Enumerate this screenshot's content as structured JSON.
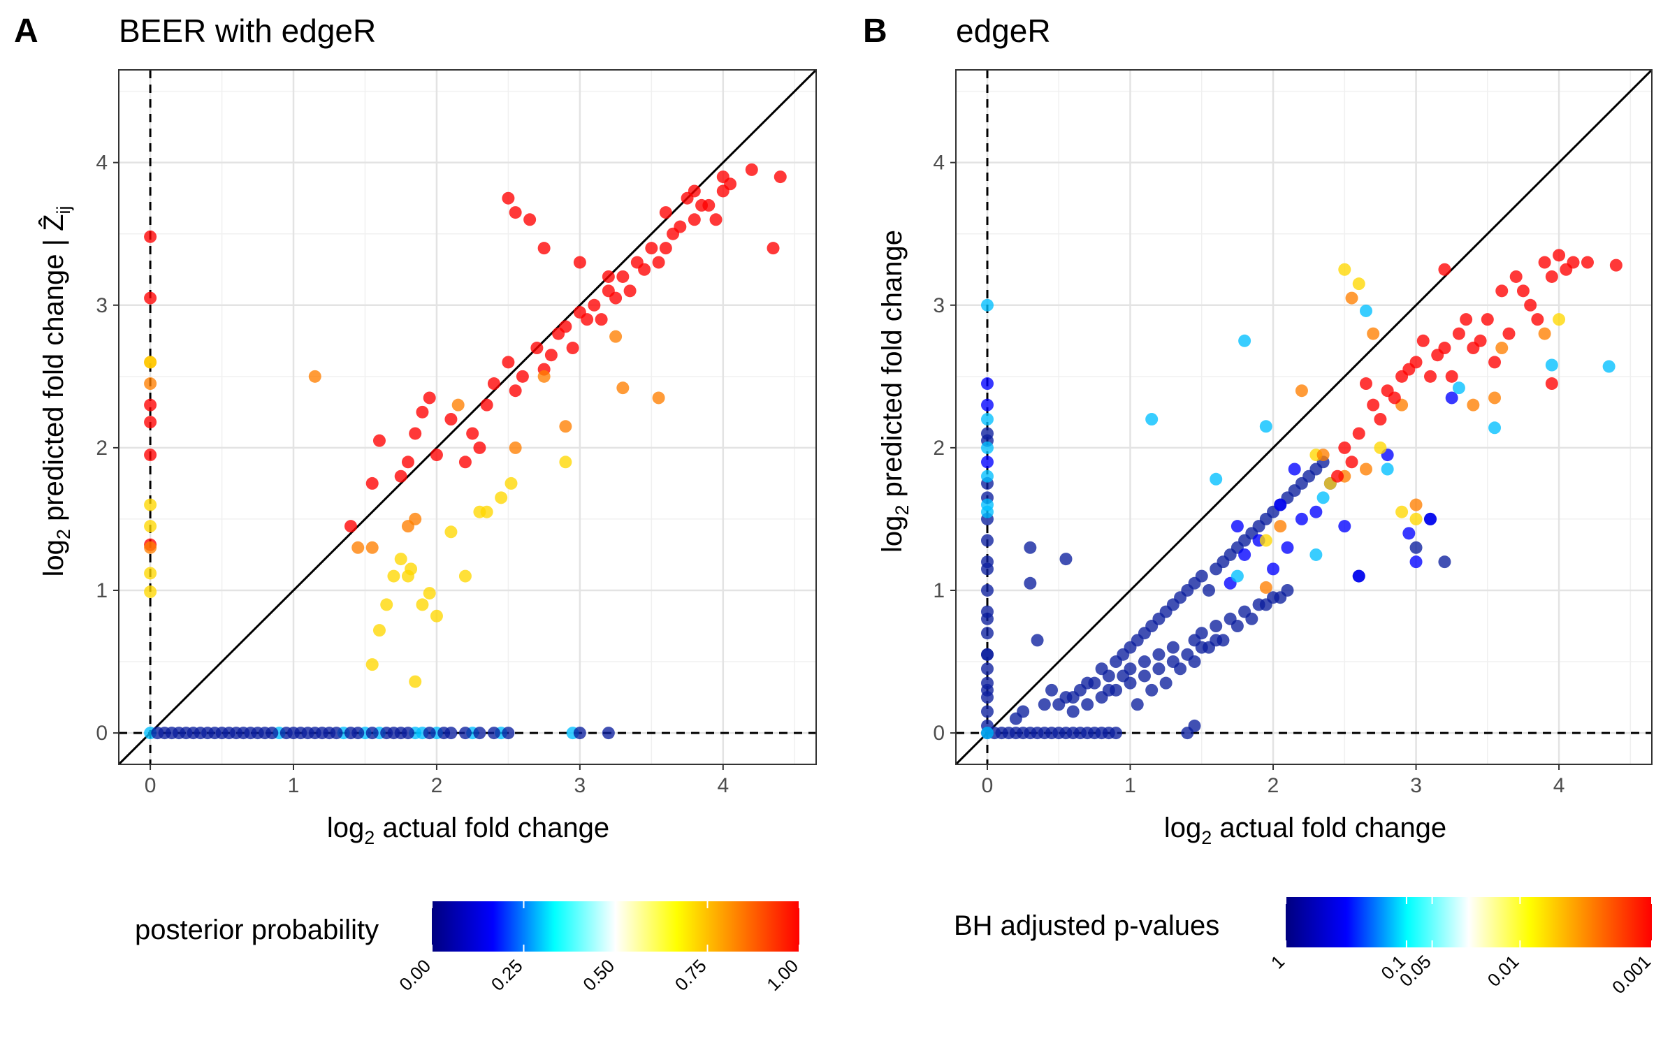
{
  "chart_data": [
    {
      "type": "scatter",
      "panel_letter": "A",
      "title": "BEER with edgeR",
      "xlabel": "log2 actual fold change",
      "ylabel": "log2 predicted fold change | Ẑij",
      "xlim": [
        -0.22,
        4.65
      ],
      "ylim": [
        -0.22,
        4.65
      ],
      "xticks": [
        0,
        1,
        2,
        3,
        4
      ],
      "yticks": [
        0,
        1,
        2,
        3,
        4
      ],
      "grid": true,
      "reference_lines": [
        "y = x (solid)",
        "x = 0 (dashed)",
        "y = 0 (dashed)"
      ],
      "colorbar": {
        "title": "posterior probability",
        "colors": [
          "#00007f",
          "#0000ff",
          "#00ffff",
          "#ffffff",
          "#ffff00",
          "#ff8000",
          "#ff0000"
        ],
        "tick_labels": [
          "0.00",
          "0.25",
          "0.50",
          "0.75",
          "1.00"
        ]
      },
      "point_groups": [
        {
          "color": "#ff0000",
          "x": [
            2.85,
            3.0,
            3.2,
            3.4,
            3.6,
            3.8,
            3.9,
            4.0,
            3.7,
            3.5,
            3.3,
            3.1,
            2.9,
            2.7,
            2.5,
            2.4,
            2.6,
            2.8,
            3.05,
            3.25,
            3.45,
            3.65,
            3.85,
            4.05,
            4.2,
            4.35,
            4.4,
            3.95,
            3.75,
            3.55,
            3.35,
            3.15,
            2.95,
            2.75,
            2.55,
            2.35,
            2.25,
            2.1,
            2.0,
            1.95,
            1.9,
            1.85,
            1.8,
            1.75,
            1.6,
            1.55,
            1.4,
            2.5,
            2.55,
            2.65,
            2.3,
            2.75,
            2.2,
            3.0,
            3.2,
            3.8,
            4.0,
            3.6,
            0.0,
            0.0,
            0.0,
            0.0,
            0.0,
            0.0
          ],
          "y": [
            2.8,
            2.95,
            3.1,
            3.3,
            3.4,
            3.6,
            3.7,
            3.8,
            3.55,
            3.4,
            3.2,
            3.0,
            2.85,
            2.7,
            2.6,
            2.45,
            2.5,
            2.65,
            2.9,
            3.05,
            3.25,
            3.5,
            3.7,
            3.85,
            3.95,
            3.4,
            3.9,
            3.6,
            3.75,
            3.3,
            3.1,
            2.9,
            2.7,
            2.55,
            2.4,
            2.3,
            2.1,
            2.2,
            1.95,
            2.35,
            2.25,
            2.1,
            1.9,
            1.8,
            2.05,
            1.75,
            1.45,
            3.75,
            3.65,
            3.6,
            2.0,
            3.4,
            1.9,
            3.3,
            3.2,
            3.8,
            3.9,
            3.65,
            3.48,
            3.05,
            2.3,
            2.18,
            1.95,
            1.32
          ]
        },
        {
          "color": "#ff7f00",
          "x": [
            1.15,
            1.45,
            1.55,
            1.8,
            1.85,
            2.15,
            2.55,
            2.75,
            3.3,
            3.55,
            3.25,
            2.9,
            0.0,
            0.0,
            0.0
          ],
          "y": [
            2.5,
            1.3,
            1.3,
            1.45,
            1.5,
            2.3,
            2.0,
            2.5,
            2.42,
            2.35,
            2.78,
            2.15,
            2.6,
            2.45,
            1.3
          ]
        },
        {
          "color": "#ffd700",
          "x": [
            1.7,
            1.75,
            1.8,
            1.82,
            1.9,
            1.95,
            2.0,
            2.1,
            2.2,
            2.3,
            2.35,
            2.45,
            2.52,
            2.9,
            1.6,
            1.65,
            1.55,
            1.85,
            0.0,
            0.0,
            0.0,
            0.0,
            0.0
          ],
          "y": [
            1.1,
            1.22,
            1.1,
            1.15,
            0.9,
            0.98,
            0.82,
            1.41,
            1.1,
            1.55,
            1.55,
            1.65,
            1.75,
            1.9,
            0.72,
            0.9,
            0.48,
            0.36,
            2.6,
            1.6,
            1.45,
            1.12,
            0.99
          ]
        },
        {
          "color": "#00bfff",
          "x": [
            0.0,
            0.9,
            1.35,
            1.5,
            1.6,
            1.85,
            1.9,
            2.0,
            2.25,
            2.45,
            2.95
          ],
          "y": [
            0.0,
            0.0,
            0.0,
            0.0,
            0.0,
            0.0,
            0.0,
            0.0,
            0.0,
            0.0,
            0.0
          ]
        },
        {
          "color": "#0b1f9e",
          "x": [
            0.05,
            0.1,
            0.15,
            0.2,
            0.25,
            0.3,
            0.35,
            0.4,
            0.45,
            0.5,
            0.55,
            0.6,
            0.65,
            0.7,
            0.75,
            0.8,
            0.85,
            0.95,
            1.0,
            1.05,
            1.1,
            1.15,
            1.2,
            1.25,
            1.3,
            1.4,
            1.45,
            1.55,
            1.65,
            1.7,
            1.75,
            1.8,
            1.95,
            2.05,
            2.1,
            2.2,
            2.3,
            2.4,
            2.5,
            3.0,
            3.2
          ],
          "y": [
            0,
            0,
            0,
            0,
            0,
            0,
            0,
            0,
            0,
            0,
            0,
            0,
            0,
            0,
            0,
            0,
            0,
            0,
            0,
            0,
            0,
            0,
            0,
            0,
            0,
            0,
            0,
            0,
            0,
            0,
            0,
            0,
            0,
            0,
            0,
            0,
            0,
            0,
            0,
            0,
            0
          ]
        }
      ]
    },
    {
      "type": "scatter",
      "panel_letter": "B",
      "title": "edgeR",
      "xlabel": "log2 actual fold change",
      "ylabel": "log2 predicted fold change",
      "xlim": [
        -0.22,
        4.65
      ],
      "ylim": [
        -0.22,
        4.65
      ],
      "xticks": [
        0,
        1,
        2,
        3,
        4
      ],
      "yticks": [
        0,
        1,
        2,
        3,
        4
      ],
      "grid": true,
      "reference_lines": [
        "y = x (solid)",
        "x = 0 (dashed)",
        "y = 0 (dashed)"
      ],
      "colorbar": {
        "title": "BH adjusted p-values",
        "colors": [
          "#00007f",
          "#0000ff",
          "#00ffff",
          "#ffffff",
          "#ffff00",
          "#ff8000",
          "#ff0000"
        ],
        "tick_labels": [
          "1",
          "0.1",
          "0.05",
          "0.01",
          "0.001"
        ]
      },
      "point_groups": [
        {
          "color": "#ff0000",
          "x": [
            2.5,
            2.6,
            2.7,
            2.8,
            2.9,
            3.0,
            3.1,
            3.2,
            3.3,
            3.4,
            3.5,
            3.6,
            3.7,
            3.8,
            3.9,
            4.0,
            4.1,
            4.2,
            4.4,
            3.65,
            3.75,
            3.85,
            3.95,
            4.05,
            3.55,
            3.45,
            3.35,
            3.25,
            3.15,
            3.05,
            2.95,
            2.85,
            2.75,
            2.65,
            2.55,
            2.45,
            3.2,
            3.95
          ],
          "y": [
            2.0,
            2.1,
            2.3,
            2.4,
            2.5,
            2.6,
            2.5,
            2.7,
            2.8,
            2.7,
            2.9,
            3.1,
            3.2,
            3.0,
            3.3,
            3.35,
            3.3,
            3.3,
            3.28,
            2.8,
            3.1,
            2.9,
            3.2,
            3.25,
            2.6,
            2.75,
            2.9,
            2.5,
            2.65,
            2.75,
            2.55,
            2.35,
            2.2,
            2.45,
            1.9,
            1.8,
            3.25,
            2.45
          ]
        },
        {
          "color": "#ff7f00",
          "x": [
            2.2,
            2.35,
            2.5,
            2.55,
            2.7,
            2.9,
            3.0,
            3.4,
            3.55,
            2.05,
            1.95,
            3.9,
            3.6,
            2.65
          ],
          "y": [
            2.4,
            1.95,
            1.8,
            3.05,
            2.8,
            2.3,
            1.6,
            2.3,
            2.35,
            1.45,
            1.02,
            2.8,
            2.7,
            1.85
          ]
        },
        {
          "color": "#ffd700",
          "x": [
            2.5,
            2.6,
            2.3,
            2.75,
            1.95,
            2.4,
            4.0,
            3.0,
            2.9
          ],
          "y": [
            3.25,
            3.15,
            1.95,
            2.0,
            1.35,
            1.75,
            2.9,
            1.5,
            1.55
          ]
        },
        {
          "color": "#00bfff",
          "x": [
            0.0,
            0.0,
            0.0,
            0.0,
            0.0,
            1.15,
            1.6,
            1.8,
            1.95,
            2.3,
            2.35,
            2.65,
            3.3,
            3.55,
            3.95,
            4.35,
            1.75,
            2.8,
            0.0,
            0.0
          ],
          "y": [
            3.0,
            1.8,
            1.6,
            1.55,
            0.0,
            2.2,
            1.78,
            2.75,
            2.15,
            1.25,
            1.65,
            2.96,
            2.42,
            2.14,
            2.58,
            2.57,
            1.1,
            1.85,
            2.0,
            2.2
          ]
        },
        {
          "color": "#0000ff",
          "x": [
            1.8,
            1.9,
            2.0,
            2.1,
            2.2,
            2.3,
            2.4,
            2.5,
            2.6,
            2.8,
            2.95,
            3.0,
            3.1,
            3.25,
            1.7,
            1.75,
            2.05,
            2.15,
            0.0,
            0.0,
            0.0
          ],
          "y": [
            1.25,
            1.35,
            1.15,
            1.3,
            1.5,
            1.55,
            1.75,
            1.45,
            1.1,
            1.95,
            1.4,
            1.2,
            1.5,
            2.35,
            1.05,
            1.45,
            1.6,
            1.85,
            2.45,
            2.3,
            1.9
          ]
        },
        {
          "color": "#0b1f9e",
          "x": [
            0.0,
            0.0,
            0.0,
            0.0,
            0.0,
            0.0,
            0.0,
            0.0,
            0.0,
            0.0,
            0.0,
            0.0,
            0.0,
            0.0,
            0.0,
            0.0,
            0.0,
            0.05,
            0.1,
            0.15,
            0.2,
            0.25,
            0.3,
            0.35,
            0.4,
            0.45,
            0.5,
            0.55,
            0.6,
            0.65,
            0.7,
            0.75,
            0.8,
            0.85,
            0.9,
            0.2,
            0.25,
            0.5,
            0.55,
            0.65,
            0.7,
            0.8,
            0.85,
            0.9,
            0.95,
            1.0,
            1.05,
            1.1,
            1.15,
            1.2,
            1.25,
            1.3,
            1.35,
            1.4,
            1.45,
            1.5,
            1.55,
            1.6,
            1.65,
            1.7,
            1.75,
            1.8,
            1.85,
            1.9,
            1.95,
            2.0,
            2.05,
            2.1,
            2.15,
            2.2,
            2.25,
            2.3,
            2.35,
            0.4,
            0.45,
            0.6,
            0.75,
            0.85,
            0.95,
            1.0,
            1.1,
            1.2,
            1.3,
            1.45,
            1.5,
            1.6,
            1.7,
            1.8,
            1.9,
            2.0,
            2.1,
            1.05,
            1.15,
            1.25,
            1.35,
            1.45,
            1.55,
            1.65,
            1.75,
            1.85,
            1.95,
            2.05,
            0.6,
            0.7,
            0.8,
            0.9,
            1.0,
            1.1,
            1.2,
            1.3,
            1.4,
            1.5,
            1.6,
            0.0,
            0.0,
            0.0,
            0.0,
            1.4,
            1.45,
            0.35,
            0.3,
            0.3,
            0.55,
            2.6,
            3.1,
            3.2,
            3.0
          ],
          "y": [
            0.05,
            0.15,
            0.25,
            0.35,
            0.45,
            0.55,
            0.7,
            0.85,
            1.0,
            1.2,
            1.35,
            1.5,
            1.65,
            1.75,
            2.05,
            2.1,
            0.0,
            0.0,
            0.0,
            0.0,
            0.0,
            0.0,
            0.0,
            0.0,
            0.0,
            0.0,
            0.0,
            0.0,
            0.0,
            0.0,
            0.0,
            0.0,
            0.0,
            0.0,
            0.0,
            0.1,
            0.15,
            0.2,
            0.25,
            0.3,
            0.35,
            0.45,
            0.4,
            0.5,
            0.55,
            0.6,
            0.65,
            0.7,
            0.75,
            0.8,
            0.85,
            0.9,
            0.95,
            1.0,
            1.05,
            1.1,
            1.0,
            1.15,
            1.2,
            1.25,
            1.3,
            1.35,
            1.4,
            1.45,
            1.5,
            1.55,
            1.6,
            1.65,
            1.7,
            1.75,
            1.8,
            1.85,
            1.9,
            0.2,
            0.3,
            0.25,
            0.35,
            0.3,
            0.4,
            0.45,
            0.5,
            0.55,
            0.6,
            0.65,
            0.7,
            0.75,
            0.8,
            0.85,
            0.9,
            0.95,
            1.0,
            0.2,
            0.3,
            0.35,
            0.45,
            0.5,
            0.6,
            0.65,
            0.75,
            0.8,
            0.9,
            0.95,
            0.15,
            0.2,
            0.25,
            0.3,
            0.35,
            0.4,
            0.45,
            0.5,
            0.55,
            0.6,
            0.65,
            0.3,
            0.55,
            0.8,
            1.15,
            0.0,
            0.05,
            0.65,
            1.05,
            1.3,
            1.22,
            1.1,
            1.5,
            1.2,
            1.3
          ]
        }
      ]
    }
  ]
}
